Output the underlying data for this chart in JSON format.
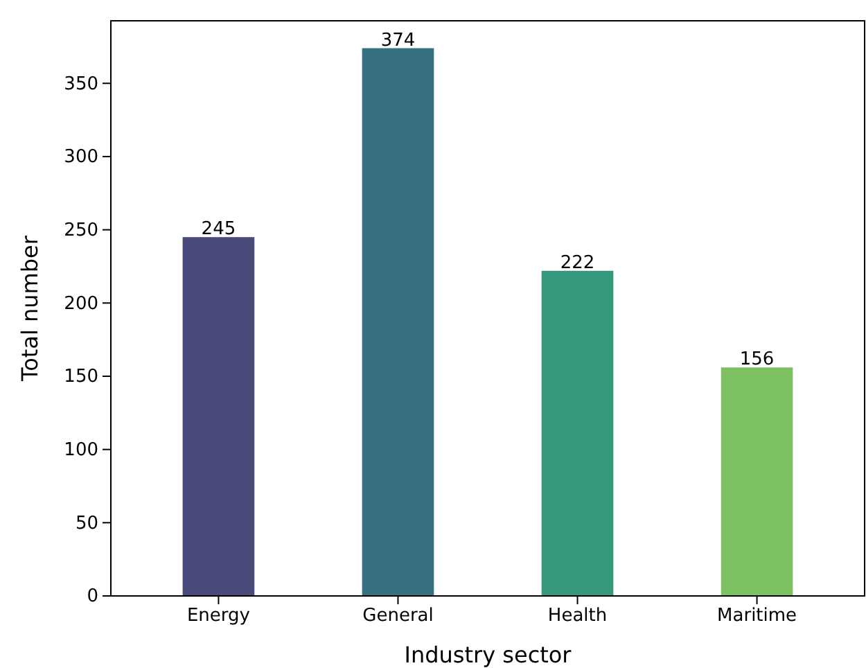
{
  "chart_data": {
    "type": "bar",
    "xlabel": "Industry sector",
    "ylabel": "Total number",
    "categories": [
      "Energy",
      "General",
      "Health",
      "Maritime"
    ],
    "values": [
      245,
      374,
      222,
      156
    ],
    "colors": [
      "#4a4a7b",
      "#37707f",
      "#35977b",
      "#7dc162"
    ],
    "ylim": [
      0,
      392.7
    ],
    "yticks": [
      0,
      50,
      100,
      150,
      200,
      250,
      300,
      350
    ],
    "data_labels": true
  }
}
